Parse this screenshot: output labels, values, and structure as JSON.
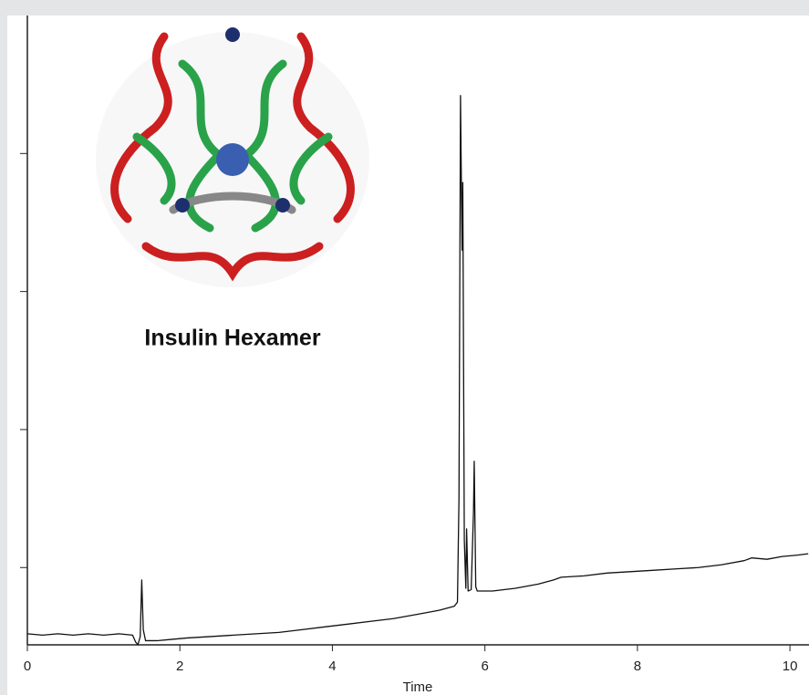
{
  "chart_data": {
    "type": "line",
    "annotation": "Insulin Hexamer",
    "x_label": "Time",
    "xlim": [
      0,
      10.25
    ],
    "xticks": [
      0,
      2,
      4,
      6,
      8,
      10
    ],
    "ylim": [
      0.44,
      5.0
    ],
    "yticks": [
      1,
      2,
      3,
      4
    ],
    "show_ytick_labels": false,
    "grid": false,
    "series": [
      {
        "color": "#111111",
        "x": [
          0,
          0.2,
          0.4,
          0.6,
          0.8,
          1.0,
          1.2,
          1.38,
          1.42,
          1.45,
          1.48,
          1.5,
          1.52,
          1.55,
          1.7,
          1.9,
          2.1,
          2.4,
          2.7,
          3.0,
          3.3,
          3.6,
          3.9,
          4.2,
          4.5,
          4.8,
          5.1,
          5.4,
          5.6,
          5.64,
          5.66,
          5.68,
          5.7,
          5.71,
          5.73,
          5.75,
          5.76,
          5.78,
          5.82,
          5.85,
          5.86,
          5.88,
          5.9,
          6.1,
          6.4,
          6.7,
          6.9,
          7.0,
          7.3,
          7.6,
          7.9,
          8.2,
          8.5,
          8.8,
          9.1,
          9.4,
          9.5,
          9.7,
          9.9,
          10.1,
          10.24
        ],
        "values": [
          0.52,
          0.51,
          0.52,
          0.51,
          0.52,
          0.51,
          0.52,
          0.51,
          0.46,
          0.44,
          0.5,
          0.91,
          0.55,
          0.47,
          0.47,
          0.48,
          0.49,
          0.5,
          0.51,
          0.52,
          0.53,
          0.55,
          0.57,
          0.59,
          0.61,
          0.63,
          0.66,
          0.69,
          0.72,
          0.75,
          1.5,
          4.42,
          3.3,
          3.79,
          1.2,
          0.85,
          1.28,
          0.83,
          0.84,
          1.4,
          1.77,
          0.86,
          0.83,
          0.83,
          0.85,
          0.88,
          0.91,
          0.93,
          0.94,
          0.96,
          0.97,
          0.98,
          0.99,
          1.0,
          1.02,
          1.05,
          1.07,
          1.06,
          1.08,
          1.09,
          1.1
        ]
      }
    ]
  }
}
